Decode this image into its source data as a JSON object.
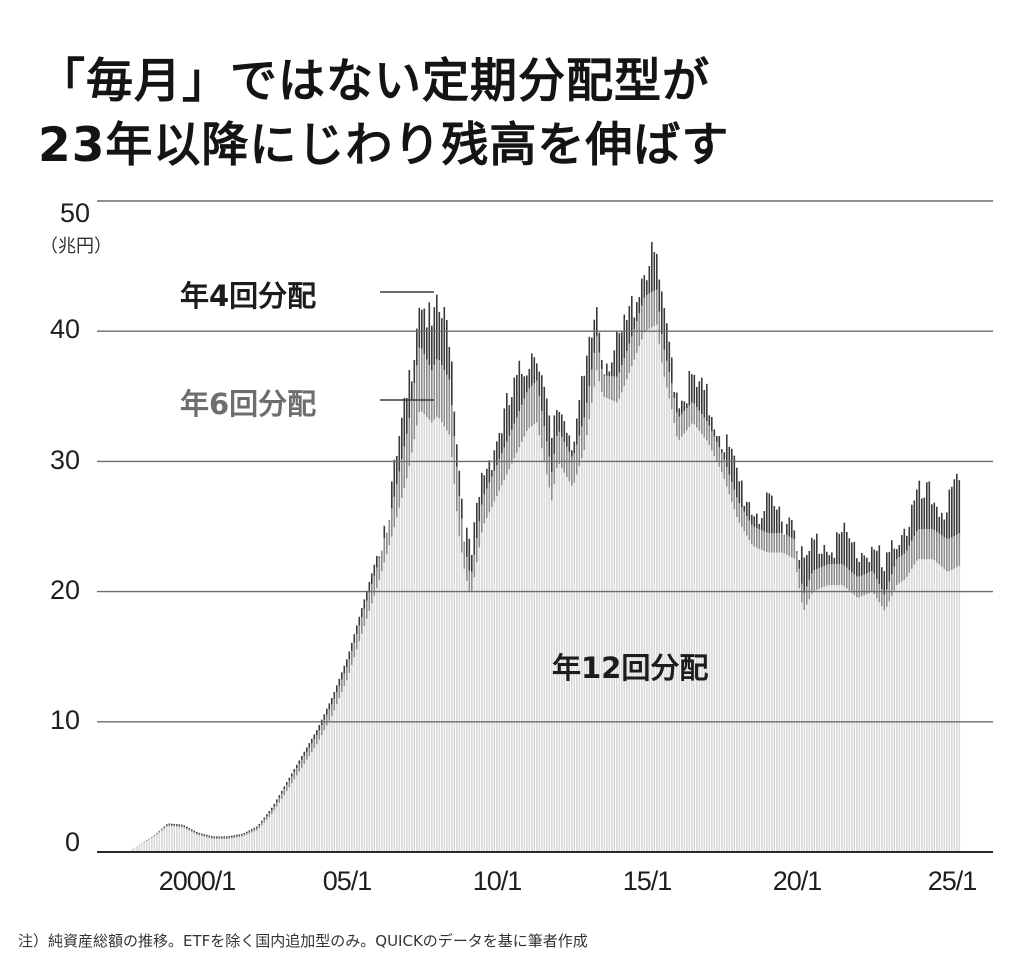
{
  "title": {
    "line1": "「毎月」ではない定期分配型が",
    "line2": "23年以降にじわり残高を伸ばす"
  },
  "note": "注）純資産総額の推移。ETFを除く国内追加型のみ。QUICKのデータを基に筆者作成",
  "colors": {
    "monthly_12": "#d9d9d9",
    "bimonthly_6": "#8c8c8c",
    "quarterly_4": "#3a3a3a",
    "gridline": "#6b6b6b",
    "bar_gap": "#ffffff"
  },
  "chart_data": {
    "type": "bar",
    "stacked": true,
    "title": "「毎月」ではない定期分配型が23年以降にじわり残高を伸ばす",
    "xlabel": "",
    "ylabel": "（兆円）",
    "ylim": [
      0,
      50
    ],
    "yticks": [
      0,
      10,
      20,
      30,
      40,
      50
    ],
    "xticks": [
      "2000/1",
      "05/1",
      "10/1",
      "15/1",
      "20/1",
      "25/1"
    ],
    "grid": true,
    "frequency": "monthly",
    "x_range": [
      "1997/10",
      "2025/6"
    ],
    "annotations": [
      {
        "text": "年4回分配",
        "series": "年4回分配",
        "position": "upper-left leader line to 2007 peak"
      },
      {
        "text": "年6回分配",
        "series": "年6回分配",
        "position": "left leader line to 2007 band"
      },
      {
        "text": "年12回分配",
        "series": "年12回分配",
        "position": "inside light area"
      }
    ],
    "series_names": [
      "年12回分配",
      "年6回分配",
      "年4回分配"
    ],
    "keypoints": {
      "date": [
        1997.8,
        1998.5,
        1999.0,
        1999.5,
        2000.0,
        2000.5,
        2001.0,
        2001.5,
        2002.0,
        2002.5,
        2003.0,
        2003.5,
        2004.0,
        2004.5,
        2005.0,
        2005.5,
        2006.0,
        2006.5,
        2007.0,
        2007.4,
        2007.8,
        2008.0,
        2008.4,
        2008.7,
        2008.9,
        2009.1,
        2009.5,
        2010.0,
        2010.5,
        2011.0,
        2011.3,
        2011.8,
        2012.0,
        2012.5,
        2012.9,
        2013.3,
        2013.5,
        2014.0,
        2014.5,
        2014.9,
        2015.3,
        2015.5,
        2015.8,
        2016.0,
        2016.5,
        2017.0,
        2017.5,
        2018.0,
        2018.5,
        2019.0,
        2019.5,
        2019.9,
        2020.1,
        2020.2,
        2020.5,
        2021.0,
        2021.5,
        2022.0,
        2022.5,
        2022.9,
        2023.3,
        2023.6,
        2024.0,
        2024.5,
        2025.0,
        2025.4
      ],
      "total": [
        0.2,
        1.2,
        2.2,
        2.1,
        1.5,
        1.2,
        1.2,
        1.4,
        2.0,
        3.5,
        5.5,
        7.5,
        9.5,
        12.0,
        15.0,
        19.0,
        23.0,
        28.0,
        35.0,
        43.0,
        40.0,
        41.5,
        40.0,
        30.0,
        25.0,
        22.0,
        29.0,
        32.0,
        35.0,
        38.0,
        39.0,
        31.0,
        34.5,
        32.0,
        36.0,
        42.0,
        38.0,
        38.5,
        42.0,
        45.0,
        45.5,
        41.0,
        38.0,
        35.0,
        36.0,
        34.5,
        32.0,
        28.5,
        26.5,
        26.0,
        26.0,
        25.5,
        23.0,
        21.5,
        23.5,
        24.0,
        24.0,
        23.0,
        23.5,
        21.0,
        24.5,
        25.0,
        27.0,
        27.0,
        26.5,
        28.0
      ],
      "year12": [
        0.2,
        1.1,
        2.0,
        1.9,
        1.3,
        1.0,
        1.0,
        1.2,
        1.7,
        3.0,
        4.8,
        6.6,
        8.4,
        10.6,
        13.4,
        17.0,
        20.5,
        24.5,
        29.0,
        34.0,
        33.0,
        33.5,
        32.0,
        24.5,
        21.5,
        19.5,
        25.0,
        27.5,
        30.0,
        32.5,
        33.0,
        27.0,
        30.0,
        28.0,
        31.0,
        37.0,
        35.0,
        34.5,
        37.5,
        40.0,
        40.5,
        37.0,
        34.0,
        31.5,
        33.0,
        31.5,
        29.0,
        25.5,
        23.5,
        23.0,
        23.0,
        22.5,
        19.5,
        18.5,
        20.0,
        20.5,
        20.5,
        19.5,
        20.0,
        18.5,
        20.5,
        21.0,
        22.5,
        22.5,
        21.5,
        22.0
      ],
      "year6": [
        0.0,
        0.1,
        0.1,
        0.1,
        0.1,
        0.1,
        0.1,
        0.1,
        0.2,
        0.3,
        0.5,
        0.6,
        0.7,
        0.9,
        1.0,
        1.3,
        1.6,
        2.2,
        3.5,
        5.0,
        4.0,
        4.5,
        4.2,
        3.2,
        2.0,
        1.5,
        2.2,
        2.4,
        2.6,
        3.0,
        3.2,
        2.2,
        2.5,
        2.2,
        2.5,
        2.6,
        1.6,
        2.0,
        2.3,
        2.7,
        2.7,
        2.1,
        2.0,
        1.8,
        1.6,
        1.5,
        1.5,
        1.5,
        1.5,
        1.5,
        1.5,
        1.5,
        1.5,
        1.3,
        1.6,
        1.6,
        1.6,
        1.6,
        1.6,
        1.2,
        2.0,
        2.0,
        2.3,
        2.3,
        2.5,
        2.5
      ]
    }
  }
}
